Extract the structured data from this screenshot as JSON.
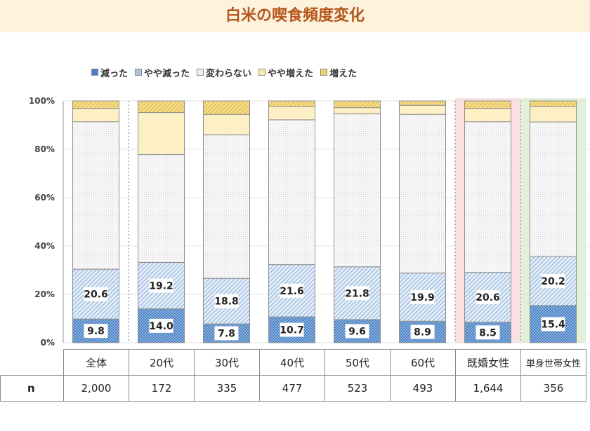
{
  "title": "白米の喫食頻度変化",
  "colors": {
    "title": "#b5551b",
    "title_band": "#fdf3dc",
    "decreased": "#4a82c4",
    "slightly_decreased": "#a9c4e2",
    "unchanged": "#eeeeee",
    "slightly_increased": "#fbe9a8",
    "increased": "#f2cf6a",
    "highlight_married": "#fbe1e1",
    "highlight_single": "#e2efd9"
  },
  "chart_data": {
    "type": "bar",
    "stacked": true,
    "title": "白米の喫食頻度変化",
    "legend_position": "top-left",
    "ylim": [
      0,
      100
    ],
    "yticks": [
      "0%",
      "20%",
      "40%",
      "60%",
      "80%",
      "100%"
    ],
    "categories": [
      "全体",
      "20代",
      "30代",
      "40代",
      "50代",
      "60代",
      "既婚女性",
      "単身世帯女性"
    ],
    "series": [
      {
        "name": "減った",
        "values": [
          9.8,
          14.0,
          7.8,
          10.7,
          9.6,
          8.9,
          8.5,
          15.4
        ],
        "labels": [
          "9.8",
          "14.0",
          "7.8",
          "10.7",
          "9.6",
          "8.9",
          "8.5",
          "15.4"
        ]
      },
      {
        "name": "やや減った",
        "values": [
          20.6,
          19.2,
          18.8,
          21.6,
          21.8,
          19.9,
          20.6,
          20.2
        ],
        "labels": [
          "20.6",
          "19.2",
          "18.8",
          "21.6",
          "21.8",
          "19.9",
          "20.6",
          "20.2"
        ]
      },
      {
        "name": "変わらない",
        "values": [
          61.0,
          44.6,
          59.4,
          59.9,
          63.3,
          65.6,
          62.3,
          55.7
        ]
      },
      {
        "name": "やや増えた",
        "values": [
          5.5,
          17.4,
          8.4,
          5.5,
          2.5,
          3.8,
          5.5,
          6.4
        ]
      },
      {
        "name": "増えた",
        "values": [
          3.1,
          4.8,
          5.6,
          2.3,
          2.8,
          1.8,
          3.1,
          2.3
        ]
      }
    ],
    "n_label": "n",
    "n_values": [
      "2,000",
      "172",
      "335",
      "477",
      "523",
      "493",
      "1,644",
      "356"
    ]
  }
}
